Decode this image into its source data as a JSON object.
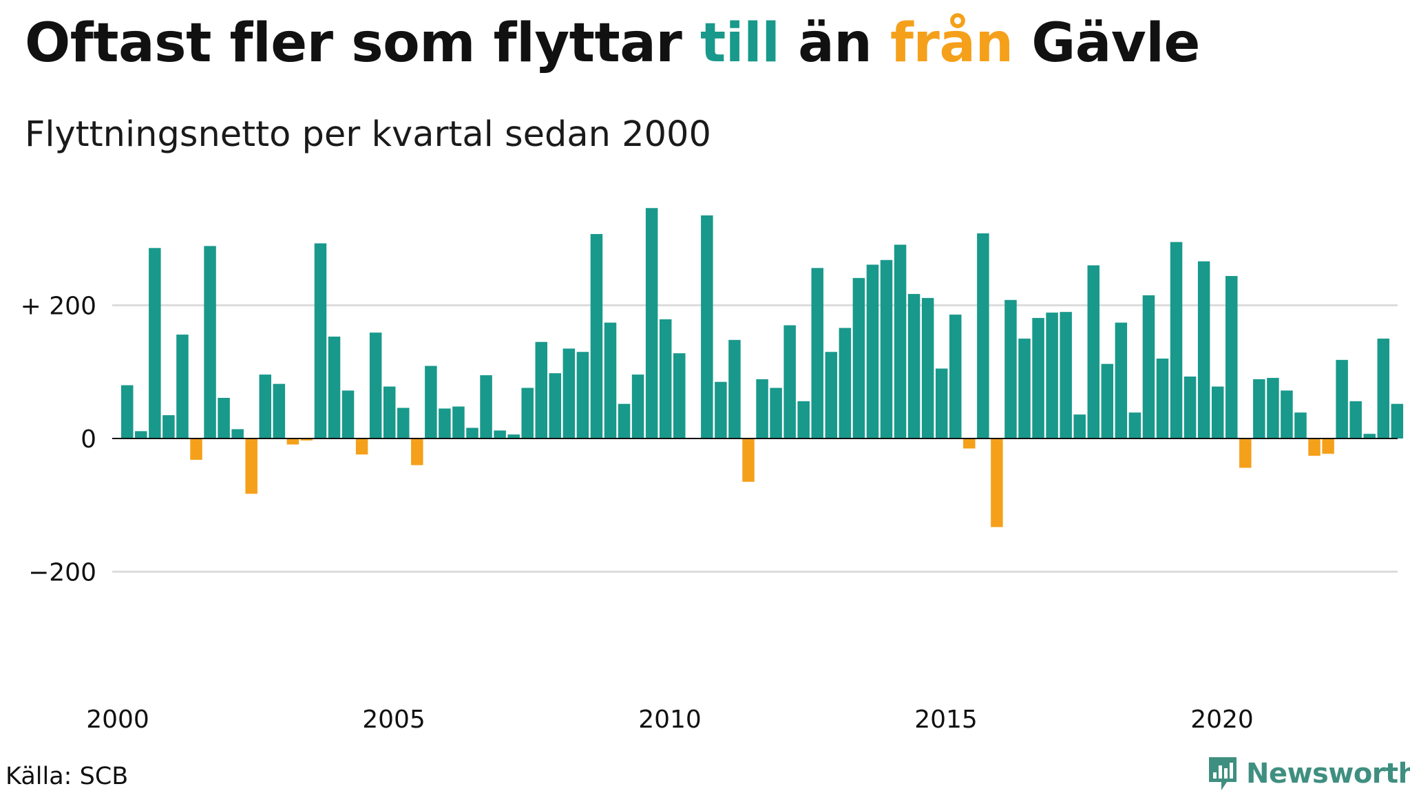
{
  "header": {
    "title_part1": "Oftast fler som flyttar ",
    "title_till": "till",
    "title_part2": " än ",
    "title_fran": "från",
    "title_part3": " Gävle",
    "subtitle": "Flyttningsnetto per kvartal sedan 2000"
  },
  "footer": {
    "source": "Källa: SCB",
    "brand": "Newsworthy",
    "brand_icon": "newsworthy-logo-icon"
  },
  "colors": {
    "positive": "#18998b",
    "negative": "#f5a01a",
    "grid": "#dcdcdc",
    "baseline": "#111111",
    "brand": "#3f8f80"
  },
  "chart_data": {
    "type": "bar",
    "title": "Oftast fler som flyttar till än från Gävle",
    "subtitle": "Flyttningsnetto per kvartal sedan 2000",
    "xlabel": "",
    "ylabel": "",
    "start": "2000 Q1",
    "frequency": "quarterly",
    "x_ticks": [
      "2000",
      "2005",
      "2010",
      "2015",
      "2020"
    ],
    "y_ticks": [
      {
        "value": 200,
        "label": "+ 200"
      },
      {
        "value": 0,
        "label": "0"
      },
      {
        "value": -200,
        "label": "−200"
      }
    ],
    "ylim": [
      -370,
      370
    ],
    "grid": true,
    "values": [
      80,
      11,
      286,
      35,
      156,
      -32,
      289,
      61,
      14,
      -83,
      96,
      82,
      -9,
      -3,
      293,
      153,
      72,
      -24,
      159,
      78,
      46,
      -40,
      109,
      45,
      48,
      16,
      95,
      12,
      6,
      76,
      145,
      98,
      135,
      130,
      307,
      174,
      52,
      96,
      346,
      179,
      128,
      0,
      335,
      85,
      148,
      -65,
      89,
      76,
      170,
      56,
      256,
      130,
      166,
      241,
      261,
      268,
      291,
      217,
      211,
      105,
      186,
      -15,
      308,
      -133,
      208,
      150,
      181,
      189,
      190,
      36,
      260,
      112,
      174,
      39,
      215,
      120,
      295,
      93,
      266,
      78,
      244,
      -44,
      89,
      91,
      72,
      39,
      -26,
      -23,
      118,
      56,
      7,
      150,
      52
    ]
  }
}
